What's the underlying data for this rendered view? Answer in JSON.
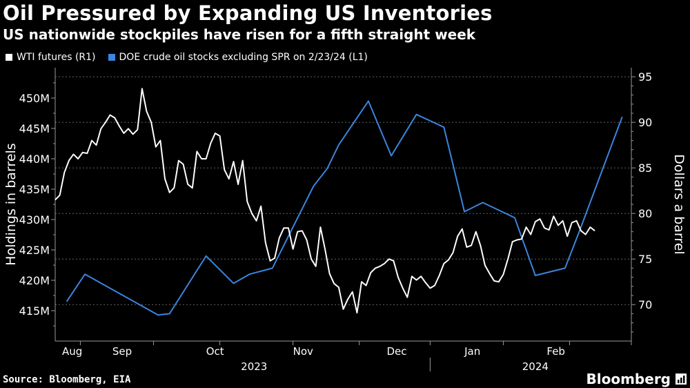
{
  "header": {
    "title": "Oil Pressured by Expanding US Inventories",
    "subtitle": "US nationwide stockpiles have risen for a fifth straight week"
  },
  "footer": {
    "source": "Source: Bloomberg, EIA",
    "brand": "Bloomberg"
  },
  "colors": {
    "wti": "#ffffff",
    "doe": "#3a86e0",
    "axis": "#9a9a9a",
    "grid": "#666666"
  },
  "chart_data": {
    "type": "line",
    "left_axis": {
      "label": "Holdings in barrels",
      "range": [
        410,
        455
      ],
      "ticks": [
        415,
        420,
        425,
        430,
        435,
        440,
        445,
        450
      ],
      "tick_labels": [
        "415M",
        "420M",
        "425M",
        "430M",
        "435M",
        "440M",
        "445M",
        "450M"
      ]
    },
    "right_axis": {
      "label": "Dollars a barrel",
      "range": [
        66,
        96
      ],
      "ticks": [
        70,
        75,
        80,
        85,
        90,
        95
      ],
      "tick_labels": [
        "70",
        "75",
        "80",
        "85",
        "90",
        "95"
      ]
    },
    "x_axis": {
      "range": [
        0,
        252
      ],
      "month_ticks": [
        11,
        43,
        72,
        104,
        133,
        164,
        196,
        225,
        252
      ],
      "month_labels": [
        {
          "pos": 3,
          "label": "Aug"
        },
        {
          "pos": 25,
          "label": "Sep"
        },
        {
          "pos": 66,
          "label": "Oct"
        },
        {
          "pos": 104,
          "label": "Nov"
        },
        {
          "pos": 145,
          "label": "Dec"
        },
        {
          "pos": 179,
          "label": "Jan"
        },
        {
          "pos": 215,
          "label": "Feb"
        }
      ],
      "year_labels": [
        {
          "pos": 87,
          "label": "2023"
        },
        {
          "pos": 210,
          "label": "2024"
        }
      ],
      "year_divider": 164
    },
    "series": [
      {
        "name": "WTI futures (R1)",
        "axis": "right",
        "x": [
          0,
          2,
          4,
          6,
          8,
          10,
          12,
          14,
          16,
          18,
          20,
          22,
          24,
          26,
          28,
          30,
          32,
          34,
          36,
          38,
          40,
          42,
          44,
          46,
          48,
          50,
          52,
          54,
          56,
          58,
          60,
          62,
          64,
          66,
          68,
          70,
          72,
          74,
          76,
          78,
          80,
          82,
          84,
          86,
          88,
          90,
          92,
          94,
          96,
          98,
          100,
          102,
          104,
          106,
          108,
          110,
          112,
          114,
          116,
          118,
          120,
          122,
          124,
          126,
          128,
          130,
          132,
          134,
          136,
          138,
          140,
          142,
          144,
          146,
          148,
          150,
          152,
          154,
          156,
          158,
          160,
          162,
          164,
          166,
          168,
          170,
          172,
          174,
          176,
          178,
          180,
          182,
          184,
          186,
          188,
          190,
          192,
          194,
          196,
          198,
          200,
          202,
          204,
          206,
          208,
          210,
          212,
          214,
          216,
          218,
          220,
          222,
          224,
          226,
          228,
          230,
          232,
          234,
          236
        ],
        "values": [
          81.5,
          82,
          84.5,
          85.8,
          86.5,
          86,
          86.7,
          86.6,
          88,
          87.5,
          89.3,
          90,
          90.8,
          90.5,
          89.6,
          88.8,
          89.3,
          88.7,
          89.2,
          93.7,
          91.2,
          90,
          87.3,
          88,
          83.8,
          82.3,
          82.8,
          85.8,
          85.4,
          83.2,
          82.8,
          86.8,
          86,
          86,
          87.7,
          88.8,
          88.5,
          84.8,
          83.8,
          85.7,
          83.2,
          85.8,
          81.3,
          80,
          79.2,
          80.8,
          76.8,
          74.8,
          75.1,
          77.3,
          78.4,
          78.4,
          76.1,
          78,
          78.1,
          77.1,
          75,
          74.2,
          78.5,
          76.1,
          73.4,
          72.3,
          71.9,
          69.5,
          70.6,
          71.4,
          69.1,
          72.5,
          72.1,
          73.5,
          74,
          74.2,
          74.5,
          75,
          74.8,
          73,
          71.8,
          70.8,
          73.1,
          72.7,
          73.1,
          72.4,
          71.8,
          72.1,
          73.2,
          74.5,
          74.9,
          75.7,
          77.5,
          78.3,
          76.3,
          76.5,
          78,
          76.5,
          74.3,
          73.4,
          72.6,
          72.5,
          73.3,
          75,
          76.9,
          77.1,
          77.2,
          78.5,
          77.7,
          79.1,
          79.4,
          78.4,
          78.2,
          79.7,
          78.7,
          79.2,
          77.5,
          79,
          79.2,
          78.1,
          77.7,
          78.5,
          78.1
        ]
      },
      {
        "name": "DOE crude oil stocks excluding SPR on 2/23/24 (L1)",
        "axis": "left",
        "x": [
          5,
          13,
          45,
          50,
          66,
          78,
          85,
          95,
          103,
          113,
          119,
          124,
          137,
          147,
          158,
          170,
          179,
          187,
          201,
          210,
          223,
          229,
          248
        ],
        "values": [
          416.5,
          421,
          414.3,
          414.5,
          424,
          419.5,
          421,
          422,
          428,
          435.5,
          438.4,
          442.3,
          449.5,
          440.5,
          447.3,
          445.2,
          431.3,
          432.8,
          430.3,
          420.8,
          422,
          427.8,
          446.9
        ]
      }
    ]
  }
}
